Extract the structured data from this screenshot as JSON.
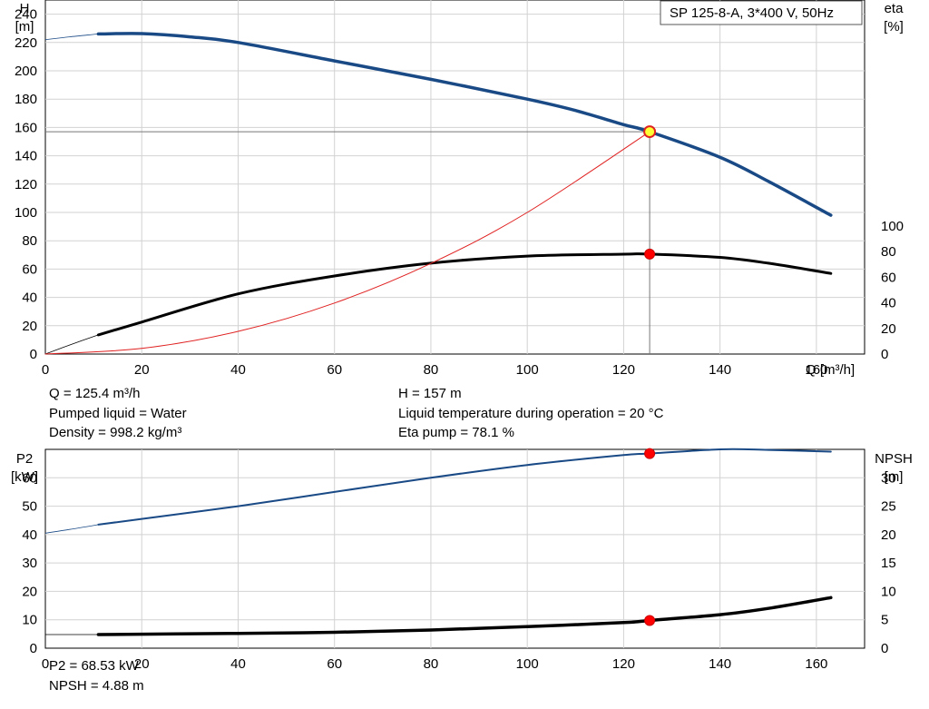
{
  "chart_data": [
    {
      "type": "line",
      "title": "SP 125-8-A, 3*400 V, 50Hz",
      "xlabel": "Q [m³/h]",
      "ylabel_left": [
        "H",
        "[m]"
      ],
      "ylabel_right": [
        "eta",
        "[%]"
      ],
      "xlim": [
        0,
        170
      ],
      "x_ticks": [
        0,
        20,
        40,
        60,
        80,
        100,
        120,
        140,
        160
      ],
      "ylim_left": [
        0,
        250
      ],
      "y_ticks_left": [
        0,
        20,
        40,
        60,
        80,
        100,
        120,
        140,
        160,
        180,
        200,
        220,
        240
      ],
      "ylim_right": [
        0,
        100
      ],
      "y_ticks_right": [
        0,
        20,
        40,
        60,
        80,
        100
      ],
      "grid": true,
      "series": [
        {
          "axis": "left",
          "color": "#1a4a86",
          "role": "head",
          "extrapolated": [
            [
              0,
              222
            ],
            [
              5,
              224
            ],
            [
              11,
              226
            ]
          ],
          "points": [
            [
              11,
              226
            ],
            [
              20,
              226.3
            ],
            [
              30,
              224
            ],
            [
              40,
              220
            ],
            [
              60,
              207
            ],
            [
              80,
              194
            ],
            [
              100,
              180
            ],
            [
              110,
              172
            ],
            [
              120,
              162
            ],
            [
              125.4,
              157
            ],
            [
              140,
              139
            ],
            [
              150,
              122
            ],
            [
              163,
              98
            ]
          ]
        },
        {
          "axis": "right",
          "color": "#000000",
          "role": "efficiency",
          "extrapolated": [
            [
              0,
              0
            ],
            [
              5,
              7
            ],
            [
              11,
              15
            ]
          ],
          "points": [
            [
              11,
              15
            ],
            [
              20,
              25
            ],
            [
              40,
              47
            ],
            [
              60,
              61
            ],
            [
              80,
              71
            ],
            [
              100,
              76.5
            ],
            [
              120,
              78
            ],
            [
              125.4,
              78.1
            ],
            [
              140,
              75.5
            ],
            [
              150,
              71
            ],
            [
              163,
              63
            ]
          ]
        },
        {
          "axis": "left",
          "color": "#e02020",
          "role": "system-curve",
          "points": [
            [
              0,
              0
            ],
            [
              20,
              4
            ],
            [
              40,
              16
            ],
            [
              60,
              36
            ],
            [
              80,
              64
            ],
            [
              100,
              100
            ],
            [
              125.4,
              157
            ]
          ]
        }
      ],
      "duty_point": {
        "x": 125.4,
        "head": 157,
        "eta": 78.1
      }
    },
    {
      "type": "line",
      "xlim": [
        0,
        170
      ],
      "x_ticks": [
        0,
        20,
        40,
        60,
        80,
        100,
        120,
        140,
        160
      ],
      "ylabel_left": [
        "P2",
        "[kW]"
      ],
      "ylabel_right": [
        "NPSH",
        "[m]"
      ],
      "ylim_left": [
        0,
        70
      ],
      "y_ticks_left": [
        0,
        10,
        20,
        30,
        40,
        50,
        60
      ],
      "ylim_right": [
        0,
        35
      ],
      "y_ticks_right": [
        0,
        5,
        10,
        15,
        20,
        25,
        30
      ],
      "grid": true,
      "series": [
        {
          "axis": "left",
          "color": "#1a4a86",
          "role": "power",
          "extrapolated": [
            [
              0,
              40.5
            ],
            [
              5,
              41.8
            ],
            [
              11,
              43.5
            ]
          ],
          "points": [
            [
              11,
              43.5
            ],
            [
              20,
              45.5
            ],
            [
              40,
              50
            ],
            [
              60,
              55
            ],
            [
              80,
              60
            ],
            [
              100,
              64.5
            ],
            [
              120,
              68
            ],
            [
              125.4,
              68.53
            ],
            [
              140,
              70
            ],
            [
              150,
              69.8
            ],
            [
              163,
              69.2
            ]
          ]
        },
        {
          "axis": "right",
          "color": "#000000",
          "role": "npsh",
          "extrapolated": [
            [
              0,
              2.4
            ],
            [
              11,
              2.4
            ]
          ],
          "points": [
            [
              11,
              2.4
            ],
            [
              40,
              2.6
            ],
            [
              60,
              2.8
            ],
            [
              80,
              3.2
            ],
            [
              100,
              3.8
            ],
            [
              120,
              4.5
            ],
            [
              125.4,
              4.88
            ],
            [
              140,
              5.9
            ],
            [
              150,
              7.0
            ],
            [
              163,
              8.9
            ]
          ]
        }
      ],
      "duty_point": {
        "x": 125.4,
        "p2": 68.53,
        "npsh": 4.88
      }
    }
  ],
  "info_top_left": [
    "Q = 125.4 m³/h",
    "Pumped liquid = Water",
    "Density = 998.2 kg/m³"
  ],
  "info_top_right": [
    "H = 157 m",
    "Liquid temperature during operation = 20 °C",
    "Eta pump = 78.1 %"
  ],
  "info_bottom": [
    "P2 = 68.53 kW",
    "NPSH = 4.88 m"
  ]
}
